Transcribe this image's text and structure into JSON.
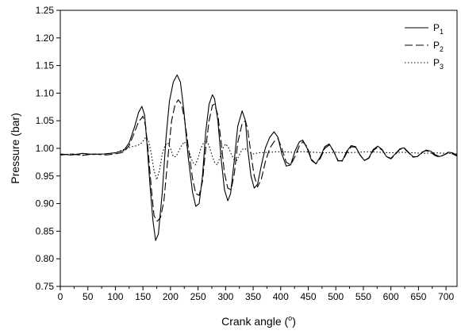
{
  "chart_data": {
    "type": "line",
    "xlabel_main": "Crank angle (",
    "xlabel_sup": "o",
    "xlabel_end": ")",
    "ylabel": "Pressure (bar)",
    "xlim": [
      0,
      720
    ],
    "ylim": [
      0.75,
      1.25
    ],
    "x_ticks": [
      0,
      25,
      50,
      75,
      100,
      125,
      150,
      175,
      200,
      225,
      250,
      275,
      300,
      325,
      350,
      375,
      400,
      425,
      450,
      475,
      500,
      525,
      550,
      575,
      600,
      625,
      650,
      675,
      700
    ],
    "x_tick_labels": [
      "0",
      "",
      "50",
      "",
      "100",
      "",
      "150",
      "",
      "200",
      "",
      "250",
      "",
      "300",
      "",
      "350",
      "",
      "400",
      "",
      "450",
      "",
      "500",
      "",
      "550",
      "",
      "600",
      "",
      "650",
      "",
      "700"
    ],
    "y_ticks": [
      0.75,
      0.8,
      0.85,
      0.9,
      0.95,
      1.0,
      1.05,
      1.1,
      1.15,
      1.2,
      1.25
    ],
    "y_tick_labels": [
      "0.75",
      "0.80",
      "0.85",
      "0.90",
      "0.95",
      "1.00",
      "1.05",
      "1.10",
      "1.15",
      "1.20",
      "1.25"
    ],
    "grid": false,
    "legend_position": "top-right",
    "series": [
      {
        "name": "P1",
        "label_main": "P",
        "label_sub": "1",
        "dash": "solid",
        "x": [
          0,
          20,
          40,
          60,
          80,
          100,
          115,
          125,
          135,
          142,
          148,
          153,
          158,
          163,
          168,
          173,
          178,
          185,
          192,
          198,
          205,
          212,
          218,
          224,
          232,
          240,
          246,
          252,
          258,
          264,
          270,
          276,
          280,
          286,
          292,
          298,
          304,
          309,
          316,
          322,
          330,
          336,
          340,
          346,
          352,
          358,
          365,
          372,
          380,
          388,
          395,
          402,
          410,
          418,
          426,
          434,
          440,
          448,
          456,
          464,
          472,
          480,
          488,
          496,
          504,
          512,
          520,
          528,
          536,
          544,
          552,
          560,
          568,
          576,
          584,
          592,
          600,
          608,
          616,
          624,
          632,
          640,
          648,
          656,
          664,
          672,
          680,
          688,
          696,
          704,
          712,
          720
        ],
        "y": [
          0.99,
          0.988,
          0.991,
          0.989,
          0.99,
          0.992,
          0.996,
          1.01,
          1.04,
          1.065,
          1.076,
          1.06,
          1.0,
          0.93,
          0.87,
          0.833,
          0.845,
          0.92,
          1.02,
          1.085,
          1.12,
          1.133,
          1.12,
          1.07,
          0.985,
          0.92,
          0.895,
          0.9,
          0.95,
          1.03,
          1.08,
          1.097,
          1.09,
          1.05,
          0.98,
          0.925,
          0.905,
          0.918,
          0.98,
          1.04,
          1.068,
          1.05,
          1.0,
          0.95,
          0.928,
          0.935,
          0.97,
          1.0,
          1.02,
          1.03,
          1.02,
          0.99,
          0.968,
          0.97,
          0.995,
          1.012,
          1.015,
          1.0,
          0.978,
          0.972,
          0.985,
          1.003,
          1.008,
          0.995,
          0.977,
          0.978,
          0.995,
          1.005,
          1.003,
          0.988,
          0.978,
          0.983,
          0.998,
          1.004,
          0.998,
          0.985,
          0.982,
          0.99,
          0.999,
          1.001,
          0.993,
          0.985,
          0.985,
          0.992,
          0.997,
          0.995,
          0.989,
          0.985,
          0.988,
          0.993,
          0.992,
          0.987
        ]
      },
      {
        "name": "P2",
        "label_main": "P",
        "label_sub": "2",
        "dash": "dashed",
        "x": [
          0,
          20,
          40,
          60,
          80,
          100,
          115,
          125,
          135,
          142,
          150,
          155,
          160,
          165,
          170,
          176,
          182,
          188,
          195,
          202,
          208,
          214,
          220,
          226,
          234,
          240,
          246,
          252,
          258,
          264,
          270,
          276,
          280,
          286,
          292,
          298,
          304,
          310,
          316,
          322,
          330,
          336,
          340,
          346,
          352,
          358,
          365,
          372,
          380,
          388,
          395,
          402,
          410,
          418,
          426,
          434,
          440,
          448,
          456,
          464,
          472,
          480,
          488,
          496,
          504,
          512,
          520,
          528,
          536,
          544,
          552,
          560,
          568,
          576,
          584,
          592,
          600,
          608,
          616,
          624,
          632,
          640,
          648,
          656,
          664,
          672,
          680,
          688,
          696,
          704,
          712,
          720
        ],
        "y": [
          0.988,
          0.99,
          0.987,
          0.99,
          0.988,
          0.99,
          0.993,
          1.005,
          1.03,
          1.048,
          1.058,
          1.04,
          0.99,
          0.93,
          0.878,
          0.868,
          0.875,
          0.905,
          0.98,
          1.05,
          1.078,
          1.088,
          1.08,
          1.05,
          0.99,
          0.945,
          0.918,
          0.915,
          0.94,
          1.0,
          1.05,
          1.078,
          1.08,
          1.06,
          1.01,
          0.955,
          0.928,
          0.925,
          0.955,
          1.01,
          1.045,
          1.05,
          1.035,
          0.99,
          0.95,
          0.93,
          0.945,
          0.975,
          1.0,
          1.012,
          1.018,
          1.0,
          0.975,
          0.97,
          0.985,
          1.005,
          1.012,
          1.003,
          0.98,
          0.972,
          0.982,
          1.0,
          1.006,
          0.995,
          0.978,
          0.977,
          0.992,
          1.003,
          1.002,
          0.988,
          0.978,
          0.982,
          0.996,
          1.002,
          0.997,
          0.985,
          0.981,
          0.989,
          0.998,
          1.0,
          0.992,
          0.984,
          0.985,
          0.993,
          0.996,
          0.993,
          0.987,
          0.984,
          0.988,
          0.992,
          0.99,
          0.986
        ]
      },
      {
        "name": "P3",
        "label_main": "P",
        "label_sub": "3",
        "dash": "dotted",
        "x": [
          0,
          20,
          40,
          60,
          80,
          100,
          110,
          120,
          130,
          140,
          148,
          155,
          160,
          165,
          170,
          175,
          180,
          185,
          190,
          195,
          200,
          205,
          210,
          215,
          220,
          225,
          230,
          235,
          240,
          245,
          250,
          255,
          260,
          265,
          270,
          275,
          280,
          285,
          290,
          295,
          300,
          305,
          310,
          315,
          320,
          325,
          330,
          335,
          340,
          350,
          360,
          380,
          400,
          420,
          440,
          460,
          480,
          500,
          520,
          540,
          560,
          580,
          600,
          620,
          640,
          660,
          680,
          700,
          720
        ],
        "y": [
          0.988,
          0.99,
          0.988,
          0.99,
          0.99,
          0.992,
          0.996,
          1.0,
          1.003,
          1.005,
          1.01,
          1.02,
          1.015,
          0.99,
          0.96,
          0.943,
          0.96,
          0.99,
          1.005,
          1.01,
          1.0,
          0.985,
          0.985,
          0.995,
          1.005,
          1.012,
          1.005,
          0.99,
          0.975,
          0.97,
          0.982,
          1.0,
          1.01,
          1.015,
          1.005,
          0.988,
          0.975,
          0.97,
          0.985,
          1.0,
          1.008,
          1.002,
          0.99,
          0.98,
          0.978,
          0.988,
          0.998,
          1.0,
          0.995,
          0.99,
          0.992,
          0.993,
          0.994,
          0.993,
          0.994,
          0.993,
          0.992,
          0.993,
          0.992,
          0.993,
          0.994,
          0.993,
          0.992,
          0.993,
          0.992,
          0.991,
          0.992,
          0.991,
          0.99
        ]
      }
    ]
  }
}
